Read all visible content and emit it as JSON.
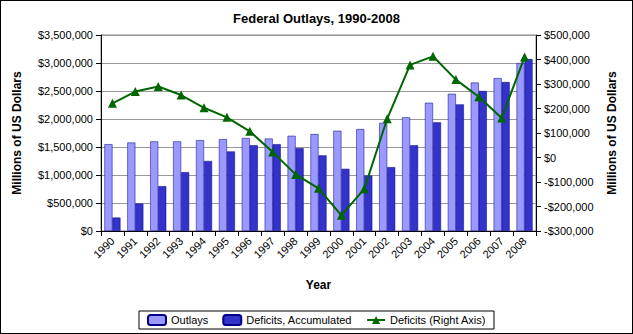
{
  "chart_data": {
    "type": "bar",
    "title": "Federal Outlays, 1990-2008",
    "x_label": "Year",
    "y_label": "Millions of US Dollars",
    "y2_label": "Millions of US Dollars",
    "categories": [
      "1990",
      "1991",
      "1992",
      "1993",
      "1994",
      "1995",
      "1996",
      "1997",
      "1998",
      "1999",
      "2000",
      "2001",
      "2002",
      "2003",
      "2004",
      "2005",
      "2006",
      "2007",
      "2008"
    ],
    "series": [
      {
        "name": "Outlays",
        "type": "bar",
        "color": "#9999ff",
        "values": [
          1550000,
          1580000,
          1600000,
          1600000,
          1620000,
          1640000,
          1660000,
          1650000,
          1700000,
          1730000,
          1790000,
          1820000,
          1930000,
          2030000,
          2290000,
          2450000,
          2650000,
          2730000,
          3000000
        ]
      },
      {
        "name": "Deficits, Accumulated",
        "type": "bar",
        "color": "#3333cc",
        "values": [
          240000,
          490000,
          800000,
          1050000,
          1250000,
          1420000,
          1530000,
          1550000,
          1480000,
          1350000,
          1110000,
          990000,
          1140000,
          1530000,
          1940000,
          2260000,
          2500000,
          2660000,
          3070000
        ]
      },
      {
        "name": "Deficits (Right Axis)",
        "type": "line",
        "axis": "y2",
        "color": "#006600",
        "marker": "triangle",
        "values": [
          221000,
          269000,
          290000,
          255000,
          203000,
          164000,
          107000,
          22000,
          -69000,
          -126000,
          -236000,
          -128000,
          158000,
          378000,
          413000,
          318000,
          248000,
          161000,
          410000
        ]
      }
    ],
    "ylim": [
      0,
      3500000
    ],
    "yticks": [
      {
        "value": 0,
        "label": "$0"
      },
      {
        "value": 500000,
        "label": "$500,000"
      },
      {
        "value": 1000000,
        "label": "$1,000,000"
      },
      {
        "value": 1500000,
        "label": "$1,500,000"
      },
      {
        "value": 2000000,
        "label": "$2,000,000"
      },
      {
        "value": 2500000,
        "label": "$2,500,000"
      },
      {
        "value": 3000000,
        "label": "$3,000,000"
      },
      {
        "value": 3500000,
        "label": "$3,500,000"
      }
    ],
    "y2lim": [
      -300000,
      500000
    ],
    "y2ticks": [
      {
        "value": -300000,
        "label": "-$300,000"
      },
      {
        "value": -200000,
        "label": "-$200,000"
      },
      {
        "value": -100000,
        "label": "-$100,000"
      },
      {
        "value": 0,
        "label": "$0"
      },
      {
        "value": 100000,
        "label": "$100,000"
      },
      {
        "value": 200000,
        "label": "$200,000"
      },
      {
        "value": 300000,
        "label": "$300,000"
      },
      {
        "value": 400000,
        "label": "$400,000"
      },
      {
        "value": 500000,
        "label": "$500,000"
      }
    ],
    "grid": true,
    "legend": "bottom"
  }
}
